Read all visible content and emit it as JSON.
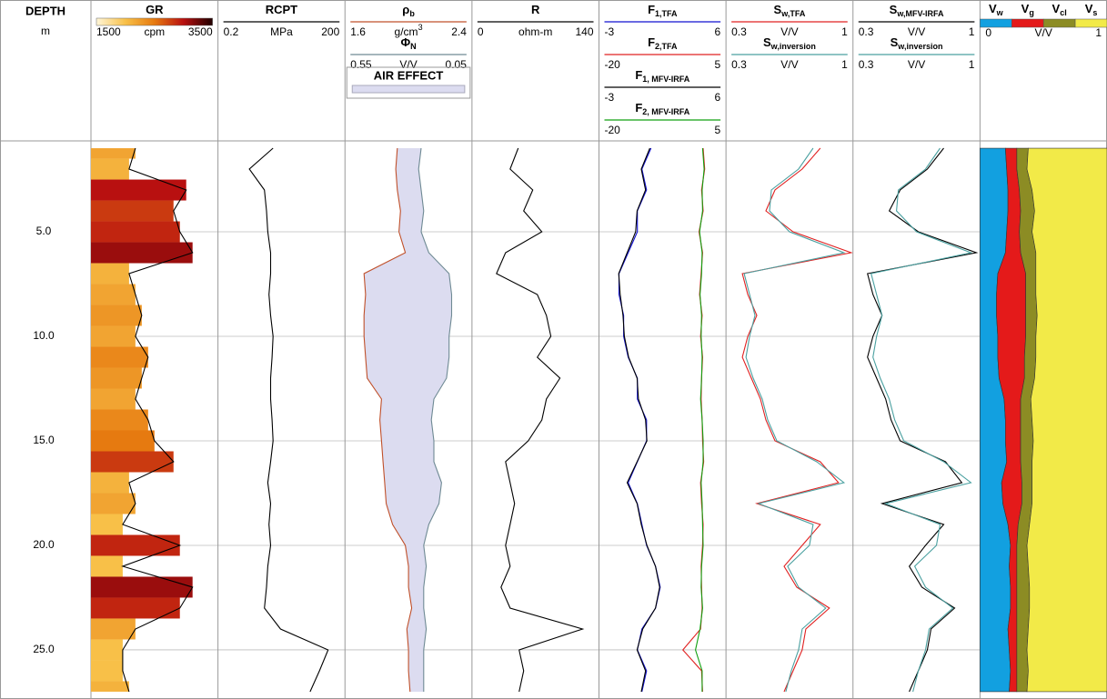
{
  "chart_data": {
    "type": "well-log",
    "depth_label": "DEPTH",
    "depth_unit": "m",
    "depth": [
      1,
      2,
      3,
      4,
      5,
      6,
      7,
      8,
      9,
      10,
      11,
      12,
      13,
      14,
      15,
      16,
      17,
      18,
      19,
      20,
      21,
      22,
      23,
      24,
      25,
      26,
      27
    ],
    "ylim": [
      0.65,
      27.35
    ],
    "yticks": [
      {
        "value": 5,
        "label": "5.0"
      },
      {
        "value": 10,
        "label": "10.0"
      },
      {
        "value": 15,
        "label": "15.0"
      },
      {
        "value": 20,
        "label": "20.0"
      },
      {
        "value": 25,
        "label": "25.0"
      }
    ],
    "grid": true,
    "colormap": [
      "#fff6d8",
      "#f8c048",
      "#e67a10",
      "#b81010",
      "#200000"
    ],
    "tracks": [
      {
        "kind": "gr",
        "curves": [
          {
            "name": "GR",
            "unit": "cpm",
            "xlim": [
              1500,
              3500
            ],
            "color": "#000000",
            "values": [
              2200,
              2100,
              3000,
              2800,
              2900,
              3100,
              2100,
              2200,
              2300,
              2200,
              2400,
              2300,
              2200,
              2400,
              2500,
              2800,
              2100,
              2200,
              2000,
              2900,
              2000,
              3100,
              2900,
              2200,
              2000,
              2000,
              2100
            ]
          }
        ]
      },
      {
        "kind": "line",
        "scale": "log",
        "curves": [
          {
            "name": "RCPT",
            "unit": "MPa",
            "xlim": [
              0.2,
              200
            ],
            "color": "#000000",
            "values": [
              4,
              1.1,
              2.5,
              2.8,
              3,
              3.5,
              3.5,
              3.2,
              3.5,
              4,
              3.8,
              3.5,
              3.5,
              3.8,
              4,
              3.5,
              3,
              3.5,
              3.2,
              3.5,
              3,
              2.8,
              2.5,
              6,
              80,
              50,
              30
            ]
          }
        ]
      },
      {
        "kind": "fill",
        "fill_label": "AIR EFFECT",
        "fill_color": "#dcdcf0",
        "curves": [
          {
            "name": "ρ",
            "sub": "b",
            "unit": "g/cm",
            "unit_sup": "3",
            "xlim": [
              1.6,
              2.4
            ],
            "color": "#c0502a",
            "values": [
              1.93,
              1.92,
              1.93,
              1.95,
              1.94,
              1.98,
              1.72,
              1.73,
              1.72,
              1.72,
              1.73,
              1.74,
              1.83,
              1.82,
              1.83,
              1.84,
              1.85,
              1.86,
              1.9,
              1.98,
              2.0,
              2.0,
              2.02,
              1.99,
              2.0,
              2.0,
              2.01
            ]
          },
          {
            "name": "Φ",
            "sub": "N",
            "unit": "V/V",
            "xlim": [
              0.55,
              0.05
            ],
            "color": "#6f8a94",
            "values": [
              0.25,
              0.26,
              0.25,
              0.24,
              0.25,
              0.22,
              0.14,
              0.13,
              0.13,
              0.14,
              0.14,
              0.15,
              0.2,
              0.21,
              0.2,
              0.2,
              0.17,
              0.18,
              0.22,
              0.24,
              0.23,
              0.24,
              0.24,
              0.23,
              0.24,
              0.24,
              0.24
            ]
          }
        ]
      },
      {
        "kind": "line",
        "curves": [
          {
            "name": "R",
            "unit": "ohm-m",
            "xlim": [
              0,
              140
            ],
            "color": "#000000",
            "values": [
              51,
              42,
              67,
              57,
              77,
              37,
              27,
              72,
              82,
              87,
              72,
              97,
              82,
              77,
              62,
              37,
              42,
              47,
              42,
              37,
              42,
              32,
              42,
              122,
              52,
              57,
              52
            ]
          }
        ]
      },
      {
        "kind": "line",
        "curves": [
          {
            "name": "F",
            "sub": "1,TFA",
            "unit": "",
            "xlim": [
              -3,
              6
            ],
            "color": "#1010d0",
            "values": [
              0.69,
              0.04,
              0.37,
              -0.28,
              -0.28,
              -0.93,
              -1.58,
              -1.58,
              -1.25,
              -1.25,
              -0.93,
              -0.28,
              -0.28,
              0.37,
              0.37,
              -0.28,
              -0.93,
              -0.28,
              0.04,
              0.37,
              1.01,
              1.34,
              1.01,
              0.04,
              -0.28,
              0.37,
              0.04
            ]
          },
          {
            "name": "F",
            "sub": "2,TFA",
            "unit": "",
            "xlim": [
              -20,
              5
            ],
            "color": "#e02020",
            "values": [
              0.5,
              0.8,
              0.2,
              0.5,
              -0.3,
              0.4,
              0.1,
              -0.2,
              0.3,
              0.0,
              0.4,
              0.2,
              0.1,
              0.3,
              0.4,
              0.6,
              0.0,
              0.2,
              0.5,
              0.4,
              0.1,
              0.2,
              0.3,
              0.0,
              -3.5,
              0.2,
              0.4
            ]
          },
          {
            "name": "F",
            "sub": "1, MFV-IRFA",
            "unit": "",
            "xlim": [
              -3,
              6
            ],
            "color": "#000000",
            "values": [
              0.6,
              0.0,
              0.3,
              -0.3,
              -0.4,
              -1.0,
              -1.6,
              -1.5,
              -1.3,
              -1.2,
              -0.9,
              -0.3,
              -0.2,
              0.3,
              0.4,
              -0.3,
              -1.0,
              -0.3,
              0.0,
              0.4,
              1.0,
              1.3,
              1.0,
              0.1,
              -0.3,
              0.3,
              0.0
            ]
          },
          {
            "name": "F",
            "sub": "2, MFV-IRFA",
            "unit": "",
            "xlim": [
              -20,
              5
            ],
            "color": "#10a010",
            "values": [
              0.4,
              0.7,
              0.3,
              0.4,
              -0.2,
              0.3,
              0.2,
              -0.1,
              0.2,
              0.1,
              0.3,
              0.2,
              0.0,
              0.3,
              0.5,
              0.5,
              0.1,
              0.3,
              0.4,
              0.5,
              0.2,
              0.1,
              0.4,
              -0.1,
              -1.0,
              0.3,
              0.3
            ]
          }
        ]
      },
      {
        "kind": "line",
        "curves": [
          {
            "name": "S",
            "sub": "w,TFA",
            "unit": "V/V",
            "xlim": [
              0.3,
              1
            ],
            "color": "#e02020",
            "values": [
              0.82,
              0.72,
              0.57,
              0.52,
              0.67,
              0.99,
              0.39,
              0.42,
              0.47,
              0.42,
              0.39,
              0.44,
              0.49,
              0.52,
              0.57,
              0.82,
              0.92,
              0.47,
              0.82,
              0.72,
              0.62,
              0.69,
              0.87,
              0.74,
              0.72,
              0.67,
              0.62
            ]
          },
          {
            "name": "S",
            "sub": "w,inversion",
            "unit": "V/V",
            "xlim": [
              0.3,
              1
            ],
            "color": "#4aa0a0",
            "values": [
              0.78,
              0.7,
              0.55,
              0.54,
              0.65,
              0.95,
              0.4,
              0.43,
              0.46,
              0.43,
              0.41,
              0.45,
              0.5,
              0.53,
              0.58,
              0.8,
              0.95,
              0.48,
              0.78,
              0.76,
              0.64,
              0.7,
              0.85,
              0.72,
              0.7,
              0.66,
              0.63
            ]
          }
        ]
      },
      {
        "kind": "line",
        "curves": [
          {
            "name": "S",
            "sub": "w,MFV-IRFA",
            "unit": "V/V",
            "xlim": [
              0.3,
              1
            ],
            "color": "#000000",
            "values": [
              0.8,
              0.71,
              0.56,
              0.5,
              0.66,
              0.98,
              0.38,
              0.41,
              0.46,
              0.41,
              0.38,
              0.43,
              0.48,
              0.51,
              0.56,
              0.81,
              0.9,
              0.46,
              0.8,
              0.7,
              0.61,
              0.68,
              0.86,
              0.73,
              0.71,
              0.66,
              0.61
            ]
          },
          {
            "name": "S",
            "sub": "w,inversion",
            "unit": "V/V",
            "xlim": [
              0.3,
              1
            ],
            "color": "#4aa0a0",
            "values": [
              0.78,
              0.7,
              0.55,
              0.54,
              0.65,
              0.95,
              0.4,
              0.43,
              0.46,
              0.43,
              0.41,
              0.45,
              0.5,
              0.53,
              0.58,
              0.8,
              0.95,
              0.48,
              0.78,
              0.76,
              0.64,
              0.7,
              0.85,
              0.72,
              0.7,
              0.66,
              0.63
            ]
          }
        ]
      },
      {
        "kind": "stack",
        "unit": "V/V",
        "xlim": [
          0,
          1
        ],
        "curves": [
          {
            "name": "V",
            "sub": "w",
            "color": "#12a0e0",
            "values": [
              0.2,
              0.21,
              0.22,
              0.22,
              0.21,
              0.2,
              0.14,
              0.13,
              0.13,
              0.14,
              0.14,
              0.15,
              0.19,
              0.2,
              0.2,
              0.21,
              0.17,
              0.18,
              0.22,
              0.24,
              0.23,
              0.24,
              0.24,
              0.22,
              0.23,
              0.24,
              0.23
            ]
          },
          {
            "name": "V",
            "sub": "g",
            "color": "#e41a1a",
            "values": [
              0.09,
              0.08,
              0.09,
              0.1,
              0.1,
              0.12,
              0.22,
              0.23,
              0.23,
              0.22,
              0.21,
              0.2,
              0.13,
              0.12,
              0.12,
              0.11,
              0.16,
              0.15,
              0.08,
              0.05,
              0.06,
              0.05,
              0.05,
              0.07,
              0.06,
              0.05,
              0.06
            ]
          },
          {
            "name": "V",
            "sub": "cl",
            "color": "#8c8c24",
            "values": [
              0.09,
              0.08,
              0.1,
              0.11,
              0.1,
              0.12,
              0.08,
              0.08,
              0.09,
              0.08,
              0.09,
              0.08,
              0.08,
              0.09,
              0.1,
              0.09,
              0.08,
              0.08,
              0.09,
              0.08,
              0.09,
              0.1,
              0.1,
              0.09,
              0.08,
              0.09,
              0.08
            ]
          },
          {
            "name": "V",
            "sub": "s",
            "color": "#f2ea48",
            "values": [
              0.62,
              0.63,
              0.59,
              0.57,
              0.59,
              0.56,
              0.56,
              0.56,
              0.55,
              0.56,
              0.56,
              0.57,
              0.6,
              0.59,
              0.58,
              0.59,
              0.59,
              0.59,
              0.61,
              0.63,
              0.62,
              0.61,
              0.61,
              0.62,
              0.63,
              0.62,
              0.63
            ]
          }
        ]
      }
    ]
  }
}
